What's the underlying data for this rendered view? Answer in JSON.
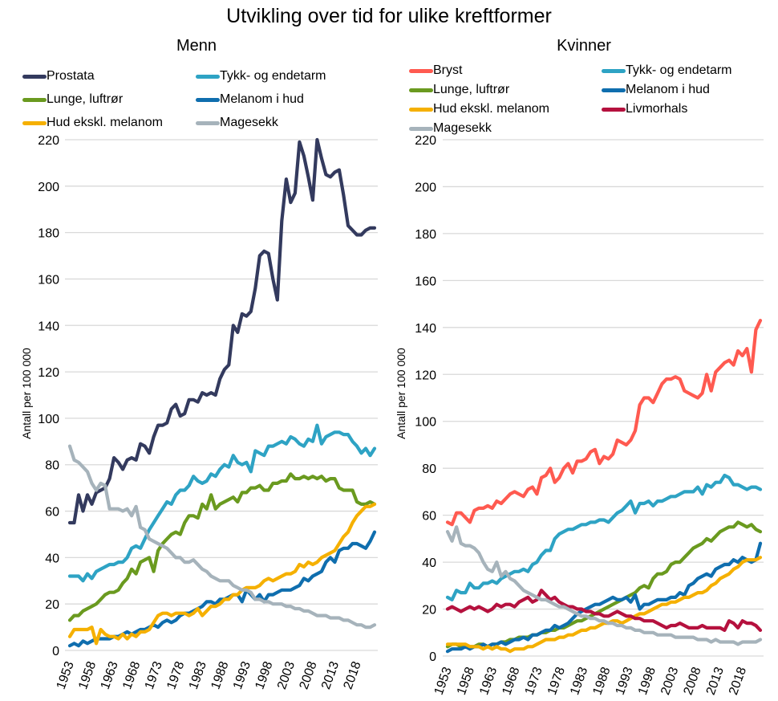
{
  "title": "Utvikling over tid for ulike kreftformer",
  "chart_data": [
    {
      "type": "line",
      "title": "Menn",
      "xlabel": "",
      "ylabel": "Antall per 100 000",
      "ylim": [
        0,
        220
      ],
      "yticks": [
        0,
        20,
        40,
        60,
        80,
        100,
        120,
        140,
        160,
        180,
        200,
        220
      ],
      "x_start": 1953,
      "x_end": 2022,
      "xtick_labels": [
        "1953",
        "1958",
        "1963",
        "1968",
        "1973",
        "1978",
        "1983",
        "1988",
        "1993",
        "1998",
        "2003",
        "2008",
        "2013",
        "2018"
      ],
      "grid": true,
      "legend": "top",
      "series": [
        {
          "name": "Prostata",
          "color": "#333a5e",
          "values": [
            55,
            55,
            67,
            60,
            67,
            63,
            68,
            69,
            70,
            74,
            83,
            81,
            78,
            82,
            83,
            82,
            89,
            88,
            85,
            92,
            97,
            97,
            98,
            104,
            106,
            101,
            102,
            108,
            108,
            107,
            111,
            110,
            111,
            110,
            117,
            121,
            123,
            140,
            137,
            145,
            144,
            146,
            156,
            170,
            172,
            171,
            160,
            151,
            185,
            203,
            193,
            197,
            219,
            213,
            204,
            194,
            220,
            212,
            205,
            204,
            206,
            207,
            196,
            183,
            181,
            179,
            179,
            181,
            182,
            182
          ]
        },
        {
          "name": "Tykk- og endetarm",
          "color": "#2ea3c4",
          "values": [
            32,
            32,
            32,
            30,
            33,
            31,
            34,
            35,
            36,
            37,
            37,
            38,
            38,
            40,
            44,
            45,
            44,
            48,
            52,
            55,
            58,
            61,
            64,
            63,
            67,
            69,
            69,
            71,
            75,
            73,
            72,
            73,
            76,
            75,
            78,
            80,
            79,
            84,
            81,
            80,
            81,
            77,
            86,
            85,
            84,
            88,
            88,
            89,
            90,
            89,
            92,
            91,
            89,
            88,
            91,
            90,
            97,
            89,
            92,
            93,
            94,
            94,
            93,
            93,
            90,
            88,
            85,
            87,
            84,
            87
          ]
        },
        {
          "name": "Lunge, luftrør",
          "color": "#6a9a1f",
          "values": [
            13,
            15,
            15,
            17,
            18,
            19,
            20,
            22,
            24,
            25,
            25,
            26,
            29,
            31,
            35,
            33,
            38,
            39,
            40,
            34,
            43,
            46,
            48,
            50,
            51,
            50,
            55,
            58,
            58,
            57,
            63,
            61,
            67,
            61,
            63,
            64,
            65,
            66,
            64,
            68,
            68,
            70,
            70,
            71,
            69,
            69,
            72,
            72,
            73,
            73,
            76,
            74,
            74,
            75,
            74,
            75,
            74,
            75,
            73,
            74,
            74,
            70,
            69,
            69,
            69,
            64,
            63,
            63,
            64,
            63
          ]
        },
        {
          "name": "Melanom i hud",
          "color": "#0f6eae",
          "values": [
            2,
            3,
            2,
            4,
            3,
            4,
            5,
            5,
            5,
            5,
            6,
            6,
            7,
            8,
            7,
            8,
            9,
            9,
            10,
            11,
            10,
            12,
            13,
            12,
            13,
            15,
            16,
            16,
            17,
            18,
            19,
            21,
            21,
            20,
            22,
            22,
            23,
            24,
            24,
            21,
            26,
            24,
            22,
            24,
            21,
            24,
            24,
            25,
            26,
            26,
            26,
            27,
            28,
            31,
            30,
            32,
            33,
            34,
            38,
            40,
            38,
            43,
            44,
            44,
            46,
            46,
            45,
            44,
            47,
            51
          ]
        },
        {
          "name": "Hud ekskl. melanom",
          "color": "#f5b000",
          "values": [
            6,
            9,
            9,
            9,
            9,
            10,
            3,
            9,
            7,
            6,
            6,
            5,
            7,
            5,
            7,
            6,
            8,
            8,
            9,
            12,
            15,
            16,
            16,
            15,
            16,
            16,
            16,
            15,
            16,
            18,
            15,
            17,
            19,
            19,
            20,
            22,
            22,
            24,
            24,
            26,
            27,
            27,
            27,
            28,
            30,
            31,
            30,
            31,
            32,
            33,
            33,
            34,
            37,
            36,
            38,
            37,
            38,
            40,
            41,
            42,
            43,
            46,
            49,
            51,
            55,
            58,
            60,
            62,
            62,
            63
          ]
        },
        {
          "name": "Magesekk",
          "color": "#a6b3bb",
          "values": [
            88,
            82,
            81,
            79,
            77,
            72,
            69,
            72,
            71,
            61,
            61,
            61,
            60,
            61,
            58,
            62,
            53,
            52,
            48,
            47,
            46,
            45,
            44,
            42,
            40,
            40,
            38,
            38,
            39,
            37,
            35,
            34,
            32,
            31,
            30,
            30,
            30,
            28,
            27,
            26,
            26,
            25,
            22,
            22,
            21,
            21,
            20,
            20,
            20,
            19,
            19,
            18,
            18,
            17,
            17,
            16,
            15,
            15,
            15,
            14,
            14,
            14,
            13,
            13,
            12,
            11,
            11,
            10,
            10,
            11
          ]
        }
      ]
    },
    {
      "type": "line",
      "title": "Kvinner",
      "xlabel": "",
      "ylabel": "Antall per 100 000",
      "ylim": [
        0,
        220
      ],
      "yticks": [
        0,
        20,
        40,
        60,
        80,
        100,
        120,
        140,
        160,
        180,
        200,
        220
      ],
      "x_start": 1953,
      "x_end": 2022,
      "xtick_labels": [
        "1953",
        "1958",
        "1963",
        "1968",
        "1973",
        "1978",
        "1983",
        "1988",
        "1993",
        "1998",
        "2003",
        "2008",
        "2013",
        "2018"
      ],
      "grid": true,
      "legend": "top",
      "series": [
        {
          "name": "Bryst",
          "color": "#ff5a50",
          "values": [
            57,
            56,
            61,
            61,
            59,
            57,
            62,
            63,
            63,
            64,
            63,
            66,
            65,
            67,
            69,
            70,
            69,
            68,
            71,
            72,
            69,
            76,
            77,
            80,
            74,
            76,
            80,
            82,
            78,
            83,
            83,
            84,
            87,
            88,
            82,
            85,
            84,
            86,
            92,
            91,
            90,
            92,
            96,
            107,
            110,
            110,
            108,
            112,
            116,
            118,
            118,
            119,
            118,
            113,
            112,
            111,
            110,
            112,
            120,
            113,
            121,
            123,
            125,
            126,
            124,
            130,
            128,
            131,
            121,
            139,
            143
          ]
        },
        {
          "name": "Tykk- og endetarm",
          "color": "#2ea3c4",
          "values": [
            25,
            24,
            28,
            27,
            27,
            31,
            29,
            29,
            31,
            31,
            32,
            31,
            33,
            34,
            35,
            36,
            36,
            37,
            36,
            39,
            40,
            43,
            45,
            45,
            50,
            52,
            53,
            54,
            54,
            55,
            56,
            56,
            57,
            57,
            58,
            58,
            57,
            59,
            61,
            62,
            64,
            66,
            61,
            65,
            65,
            66,
            64,
            66,
            66,
            67,
            68,
            68,
            69,
            70,
            70,
            70,
            72,
            69,
            73,
            72,
            74,
            74,
            77,
            76,
            73,
            73,
            72,
            71,
            72,
            72,
            71
          ]
        },
        {
          "name": "Lunge, luftrør",
          "color": "#6a9a1f",
          "values": [
            4,
            5,
            5,
            4,
            4,
            4,
            4,
            5,
            5,
            4,
            5,
            5,
            6,
            6,
            7,
            7,
            8,
            8,
            8,
            9,
            9,
            10,
            10,
            11,
            11,
            12,
            12,
            13,
            14,
            15,
            15,
            16,
            17,
            18,
            19,
            20,
            21,
            22,
            23,
            24,
            25,
            26,
            27,
            29,
            30,
            29,
            33,
            35,
            35,
            36,
            39,
            40,
            40,
            42,
            44,
            46,
            47,
            48,
            50,
            49,
            51,
            53,
            54,
            55,
            55,
            57,
            56,
            55,
            56,
            54,
            53
          ]
        },
        {
          "name": "Melanom i hud",
          "color": "#0f6eae",
          "values": [
            2,
            3,
            3,
            3,
            4,
            3,
            4,
            4,
            5,
            4,
            5,
            5,
            6,
            5,
            6,
            7,
            7,
            8,
            7,
            9,
            9,
            10,
            11,
            11,
            13,
            12,
            13,
            14,
            16,
            18,
            19,
            20,
            21,
            22,
            22,
            23,
            24,
            25,
            24,
            24,
            25,
            23,
            26,
            20,
            22,
            22,
            23,
            24,
            24,
            24,
            25,
            25,
            27,
            26,
            30,
            31,
            33,
            34,
            35,
            34,
            37,
            38,
            39,
            39,
            41,
            40,
            42,
            41,
            40,
            41,
            48
          ]
        },
        {
          "name": "Hud ekskl. melanom",
          "color": "#f5b000",
          "values": [
            5,
            5,
            5,
            5,
            5,
            4,
            4,
            4,
            3,
            4,
            3,
            4,
            3,
            3,
            2,
            3,
            3,
            3,
            4,
            4,
            5,
            6,
            7,
            7,
            7,
            8,
            8,
            9,
            9,
            10,
            11,
            11,
            12,
            12,
            13,
            14,
            14,
            15,
            15,
            14,
            15,
            16,
            17,
            18,
            18,
            19,
            20,
            21,
            22,
            22,
            23,
            23,
            24,
            25,
            25,
            26,
            27,
            27,
            28,
            30,
            31,
            33,
            34,
            35,
            37,
            38,
            40,
            41,
            41,
            41,
            42
          ]
        },
        {
          "name": "Livmorhals",
          "color": "#b5113e",
          "values": [
            20,
            21,
            20,
            19,
            20,
            21,
            20,
            21,
            20,
            19,
            20,
            22,
            21,
            22,
            22,
            21,
            23,
            24,
            25,
            23,
            24,
            28,
            26,
            24,
            25,
            23,
            22,
            21,
            21,
            20,
            20,
            19,
            19,
            18,
            18,
            17,
            17,
            18,
            19,
            18,
            17,
            17,
            16,
            16,
            15,
            15,
            15,
            14,
            13,
            12,
            13,
            13,
            14,
            13,
            12,
            12,
            12,
            13,
            12,
            12,
            12,
            12,
            11,
            15,
            14,
            12,
            15,
            14,
            14,
            13,
            11
          ]
        },
        {
          "name": "Magesekk",
          "color": "#a6b3bb",
          "values": [
            53,
            49,
            55,
            48,
            47,
            47,
            46,
            44,
            40,
            37,
            36,
            40,
            34,
            36,
            33,
            32,
            30,
            28,
            27,
            26,
            25,
            24,
            24,
            23,
            22,
            21,
            21,
            20,
            19,
            18,
            17,
            17,
            16,
            16,
            15,
            15,
            14,
            14,
            13,
            13,
            12,
            12,
            11,
            11,
            10,
            10,
            10,
            9,
            9,
            9,
            9,
            8,
            8,
            8,
            8,
            8,
            7,
            7,
            7,
            6,
            7,
            6,
            6,
            6,
            6,
            5,
            6,
            6,
            6,
            6,
            7
          ]
        }
      ]
    }
  ]
}
